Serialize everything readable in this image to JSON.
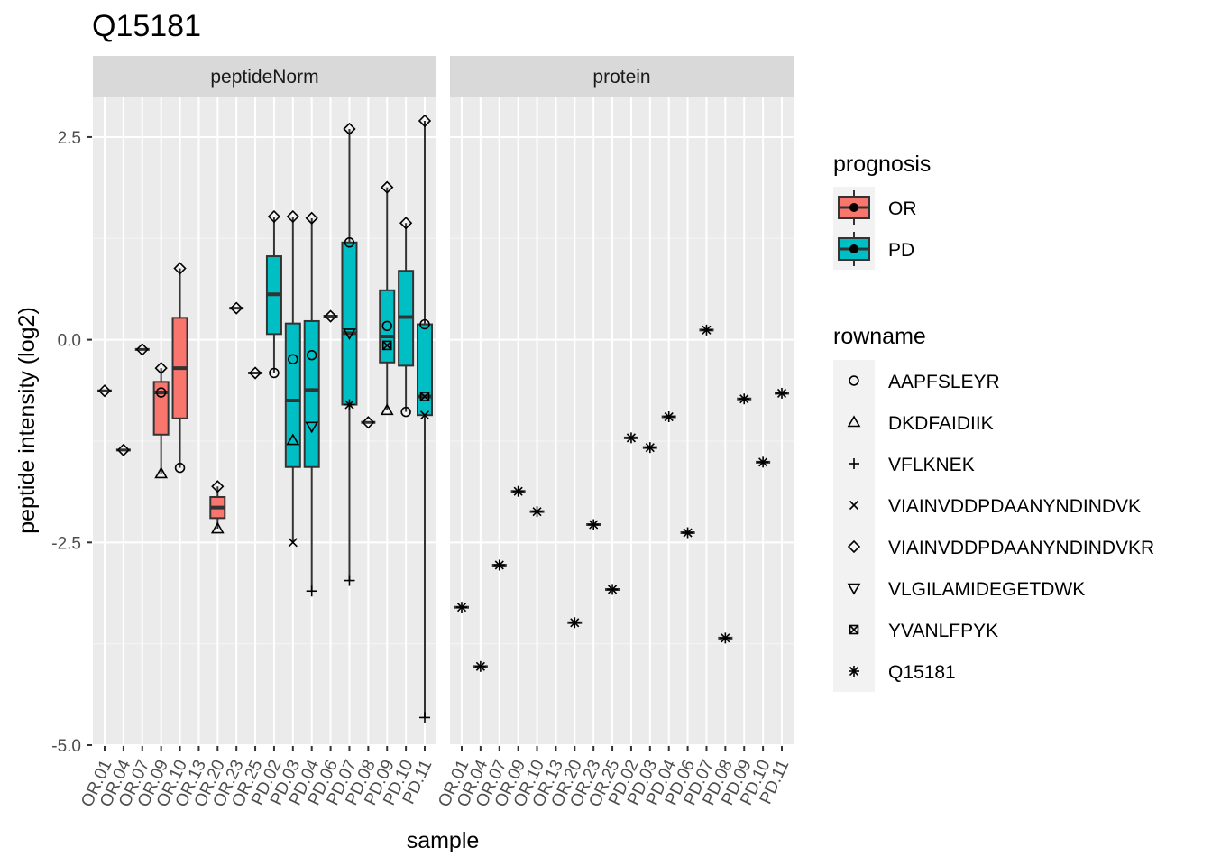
{
  "chart_data": {
    "type": "box",
    "title": "Q15181",
    "xlabel": "sample",
    "ylabel": "peptide intensity (log2)",
    "ylim": [
      -5,
      3
    ],
    "yticks": [
      -5.0,
      -2.5,
      0.0,
      2.5
    ],
    "ytick_labels": [
      "-5.0",
      "-2.5",
      "0.0",
      "2.5"
    ],
    "panels": [
      "peptideNorm",
      "protein"
    ],
    "samples": [
      "OR.01",
      "OR.04",
      "OR.07",
      "OR.09",
      "OR.10",
      "OR.13",
      "OR.20",
      "OR.23",
      "OR.25",
      "PD.02",
      "PD.03",
      "PD.04",
      "PD.06",
      "PD.07",
      "PD.08",
      "PD.09",
      "PD.10",
      "PD.11"
    ],
    "sample_prognosis": [
      "OR",
      "OR",
      "OR",
      "OR",
      "OR",
      "OR",
      "OR",
      "OR",
      "OR",
      "PD",
      "PD",
      "PD",
      "PD",
      "PD",
      "PD",
      "PD",
      "PD",
      "PD"
    ],
    "prognosis_legend": {
      "title": "prognosis",
      "items": [
        {
          "name": "OR",
          "color": "#F8766D"
        },
        {
          "name": "PD",
          "color": "#00BFC4"
        }
      ]
    },
    "rowname_legend": {
      "title": "rowname",
      "items": [
        {
          "name": "AAPFSLEYR",
          "shape": "circle"
        },
        {
          "name": "DKDFAIDIIK",
          "shape": "triangle-up"
        },
        {
          "name": "VFLKNEK",
          "shape": "plus"
        },
        {
          "name": "VIAINVDDPDAANYNDINDVK",
          "shape": "cross"
        },
        {
          "name": "VIAINVDDPDAANYNDINDVKR",
          "shape": "diamond"
        },
        {
          "name": "VLGILAMIDEGETDWK",
          "shape": "triangle-down"
        },
        {
          "name": "YVANLFPYK",
          "shape": "square-cross"
        },
        {
          "name": "Q15181",
          "shape": "asterisk"
        }
      ]
    },
    "peptideNorm": [
      {
        "sample": "OR.01",
        "points": [
          {
            "row": "VIAINVDDPDAANYNDINDVKR",
            "y": -0.63
          }
        ]
      },
      {
        "sample": "OR.04",
        "points": [
          {
            "row": "VIAINVDDPDAANYNDINDVKR",
            "y": -1.36
          }
        ]
      },
      {
        "sample": "OR.07",
        "points": [
          {
            "row": "VIAINVDDPDAANYNDINDVKR",
            "y": -0.12
          }
        ]
      },
      {
        "sample": "OR.09",
        "box": {
          "q1": -1.17,
          "median": -0.65,
          "q3": -0.52,
          "lower": -1.65,
          "upper": -0.35
        },
        "points": [
          {
            "row": "AAPFSLEYR",
            "y": -0.65
          },
          {
            "row": "DKDFAIDIIK",
            "y": -1.65
          },
          {
            "row": "VIAINVDDPDAANYNDINDVKR",
            "y": -0.35
          }
        ]
      },
      {
        "sample": "OR.10",
        "box": {
          "q1": -0.97,
          "median": -0.35,
          "q3": 0.27,
          "lower": -1.58,
          "upper": 0.88
        },
        "points": [
          {
            "row": "AAPFSLEYR",
            "y": -1.58
          },
          {
            "row": "VIAINVDDPDAANYNDINDVKR",
            "y": 0.88
          }
        ]
      },
      {
        "sample": "OR.13",
        "points": []
      },
      {
        "sample": "OR.20",
        "box": {
          "q1": -2.2,
          "median": -2.07,
          "q3": -1.94,
          "lower": -2.33,
          "upper": -1.81
        },
        "points": [
          {
            "row": "DKDFAIDIIK",
            "y": -2.33
          },
          {
            "row": "VIAINVDDPDAANYNDINDVKR",
            "y": -1.81
          }
        ]
      },
      {
        "sample": "OR.23",
        "points": [
          {
            "row": "VIAINVDDPDAANYNDINDVKR",
            "y": 0.39
          }
        ]
      },
      {
        "sample": "OR.25",
        "points": [
          {
            "row": "VIAINVDDPDAANYNDINDVKR",
            "y": -0.41
          }
        ]
      },
      {
        "sample": "PD.02",
        "box": {
          "q1": 0.07,
          "median": 0.56,
          "q3": 1.03,
          "lower": -0.41,
          "upper": 1.52
        },
        "points": [
          {
            "row": "AAPFSLEYR",
            "y": -0.41
          },
          {
            "row": "VIAINVDDPDAANYNDINDVKR",
            "y": 1.52
          }
        ]
      },
      {
        "sample": "PD.03",
        "box": {
          "q1": -1.57,
          "median": -0.75,
          "q3": 0.2,
          "lower": -2.5,
          "upper": 1.52
        },
        "points": [
          {
            "row": "AAPFSLEYR",
            "y": -0.24
          },
          {
            "row": "DKDFAIDIIK",
            "y": -1.24
          },
          {
            "row": "VIAINVDDPDAANYNDINDVK",
            "y": -2.5
          },
          {
            "row": "VIAINVDDPDAANYNDINDVKR",
            "y": 1.52
          }
        ]
      },
      {
        "sample": "PD.04",
        "box": {
          "q1": -1.57,
          "median": -0.62,
          "q3": 0.23,
          "lower": -3.1,
          "upper": 1.5
        },
        "points": [
          {
            "row": "AAPFSLEYR",
            "y": -0.19
          },
          {
            "row": "VFLKNEK",
            "y": -3.1
          },
          {
            "row": "VLGILAMIDEGETDWK",
            "y": -1.07
          },
          {
            "row": "VIAINVDDPDAANYNDINDVKR",
            "y": 1.5
          }
        ]
      },
      {
        "sample": "PD.06",
        "points": [
          {
            "row": "VIAINVDDPDAANYNDINDVKR",
            "y": 0.29
          }
        ]
      },
      {
        "sample": "PD.07",
        "box": {
          "q1": -0.8,
          "median": 0.08,
          "q3": 1.2,
          "lower": -2.97,
          "upper": 2.6
        },
        "points": [
          {
            "row": "AAPFSLEYR",
            "y": 1.2
          },
          {
            "row": "VLGILAMIDEGETDWK",
            "y": 0.08
          },
          {
            "row": "VFLKNEK",
            "y": -2.97
          },
          {
            "row": "VIAINVDDPDAANYNDINDVKR",
            "y": 2.6
          },
          {
            "row": "Q15181",
            "y": -0.8
          }
        ]
      },
      {
        "sample": "PD.08",
        "points": [
          {
            "row": "VIAINVDDPDAANYNDINDVKR",
            "y": -1.02
          }
        ]
      },
      {
        "sample": "PD.09",
        "box": {
          "q1": -0.28,
          "median": 0.04,
          "q3": 0.61,
          "lower": -0.87,
          "upper": 1.88
        },
        "points": [
          {
            "row": "AAPFSLEYR",
            "y": 0.17
          },
          {
            "row": "DKDFAIDIIK",
            "y": -0.87
          },
          {
            "row": "YVANLFPYK",
            "y": -0.07
          },
          {
            "row": "VIAINVDDPDAANYNDINDVKR",
            "y": 1.88
          }
        ]
      },
      {
        "sample": "PD.10",
        "box": {
          "q1": -0.32,
          "median": 0.28,
          "q3": 0.85,
          "lower": -0.89,
          "upper": 1.44
        },
        "points": [
          {
            "row": "AAPFSLEYR",
            "y": -0.89
          },
          {
            "row": "VIAINVDDPDAANYNDINDVKR",
            "y": 1.44
          }
        ]
      },
      {
        "sample": "PD.11",
        "box": {
          "q1": -0.93,
          "median": -0.7,
          "q3": 0.19,
          "lower": -4.66,
          "upper": 2.7
        },
        "points": [
          {
            "row": "AAPFSLEYR",
            "y": 0.19
          },
          {
            "row": "VIAINVDDPDAANYNDINDVK",
            "y": -0.93
          },
          {
            "row": "YVANLFPYK",
            "y": -0.7
          },
          {
            "row": "VIAINVDDPDAANYNDINDVKR",
            "y": 2.7
          },
          {
            "row": "VFLKNEK",
            "y": -4.66
          }
        ]
      }
    ],
    "protein": [
      {
        "sample": "OR.01",
        "points": [
          {
            "row": "Q15181",
            "y": -3.3
          }
        ]
      },
      {
        "sample": "OR.04",
        "points": [
          {
            "row": "Q15181",
            "y": -4.03
          }
        ]
      },
      {
        "sample": "OR.07",
        "points": [
          {
            "row": "Q15181",
            "y": -2.78
          }
        ]
      },
      {
        "sample": "OR.09",
        "points": [
          {
            "row": "Q15181",
            "y": -1.87
          }
        ]
      },
      {
        "sample": "OR.10",
        "points": [
          {
            "row": "Q15181",
            "y": -2.12
          }
        ]
      },
      {
        "sample": "OR.13",
        "points": []
      },
      {
        "sample": "OR.20",
        "points": [
          {
            "row": "Q15181",
            "y": -3.49
          }
        ]
      },
      {
        "sample": "OR.23",
        "points": [
          {
            "row": "Q15181",
            "y": -2.28
          }
        ]
      },
      {
        "sample": "OR.25",
        "points": [
          {
            "row": "Q15181",
            "y": -3.08
          }
        ]
      },
      {
        "sample": "PD.02",
        "points": [
          {
            "row": "Q15181",
            "y": -1.21
          }
        ]
      },
      {
        "sample": "PD.03",
        "points": [
          {
            "row": "Q15181",
            "y": -1.33
          }
        ]
      },
      {
        "sample": "PD.04",
        "points": [
          {
            "row": "Q15181",
            "y": -0.95
          }
        ]
      },
      {
        "sample": "PD.06",
        "points": [
          {
            "row": "Q15181",
            "y": -2.38
          }
        ]
      },
      {
        "sample": "PD.07",
        "points": [
          {
            "row": "Q15181",
            "y": 0.12
          }
        ]
      },
      {
        "sample": "PD.08",
        "points": [
          {
            "row": "Q15181",
            "y": -3.68
          }
        ]
      },
      {
        "sample": "PD.09",
        "points": [
          {
            "row": "Q15181",
            "y": -0.73
          }
        ]
      },
      {
        "sample": "PD.10",
        "points": [
          {
            "row": "Q15181",
            "y": -1.51
          }
        ]
      },
      {
        "sample": "PD.11",
        "points": [
          {
            "row": "Q15181",
            "y": -0.66
          }
        ]
      }
    ]
  }
}
